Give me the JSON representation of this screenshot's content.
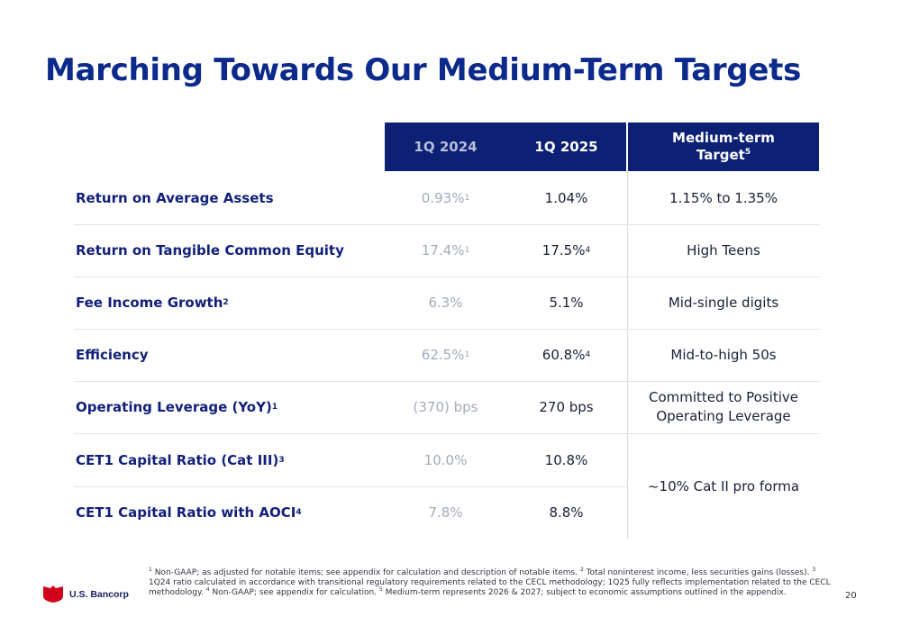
{
  "title": "Marching Towards Our Medium-Term Targets",
  "table": {
    "headers": {
      "col1": "1Q 2024",
      "col2": "1Q 2025",
      "col3_line1": "Medium-term",
      "col3_line2": "Target",
      "col3_sup": "5"
    },
    "rows": [
      {
        "label": "Return on Average Assets",
        "label_sup": "",
        "q1_2024": "0.93%",
        "q1_2024_sup": "1",
        "q1_2025": "1.04%",
        "q1_2025_sup": "",
        "target": "1.15% to 1.35%"
      },
      {
        "label": "Return on Tangible Common Equity",
        "label_sup": "",
        "q1_2024": "17.4%",
        "q1_2024_sup": "1",
        "q1_2025": "17.5%",
        "q1_2025_sup": "4",
        "target": "High Teens"
      },
      {
        "label": "Fee Income Growth",
        "label_sup": "2",
        "q1_2024": "6.3%",
        "q1_2024_sup": "",
        "q1_2025": "5.1%",
        "q1_2025_sup": "",
        "target": "Mid-single digits"
      },
      {
        "label": "Efficiency",
        "label_sup": "",
        "q1_2024": "62.5%",
        "q1_2024_sup": "1",
        "q1_2025": "60.8%",
        "q1_2025_sup": "4",
        "target": "Mid-to-high 50s"
      },
      {
        "label": "Operating Leverage (YoY)",
        "label_sup": "1",
        "q1_2024": "(370) bps",
        "q1_2024_sup": "",
        "q1_2025": "270 bps",
        "q1_2025_sup": "",
        "target_line1": "Committed to Positive",
        "target_line2": "Operating Leverage"
      },
      {
        "label": "CET1 Capital Ratio (Cat III)",
        "label_sup": "3",
        "q1_2024": "10.0%",
        "q1_2024_sup": "",
        "q1_2025": "10.8%",
        "q1_2025_sup": ""
      },
      {
        "label": "CET1 Capital Ratio with AOCI",
        "label_sup": "4",
        "q1_2024": "7.8%",
        "q1_2024_sup": "",
        "q1_2025": "8.8%",
        "q1_2025_sup": ""
      }
    ],
    "merged_target": "~10% Cat II pro forma"
  },
  "footnotes": [
    {
      "sup": "1",
      "text": "Non-GAAP; as adjusted for notable items; see appendix for calculation and description of notable items."
    },
    {
      "sup": "2",
      "text": "Total noninterest income, less securities gains (losses)."
    },
    {
      "sup": "3",
      "text": "1Q24 ratio calculated in accordance with transitional regulatory requirements related to the CECL methodology; 1Q25 fully reflects implementation related to the CECL methodology."
    },
    {
      "sup": "4",
      "text": "Non-GAAP; see appendix for calculation."
    },
    {
      "sup": "5",
      "text": "Medium-term represents 2026 & 2027; subject to economic assumptions outlined in the appendix."
    }
  ],
  "logo": {
    "text": "U.S. Bancorp",
    "icon": "usbank-shield-icon",
    "color": "#d0021b"
  },
  "page_number": "20"
}
